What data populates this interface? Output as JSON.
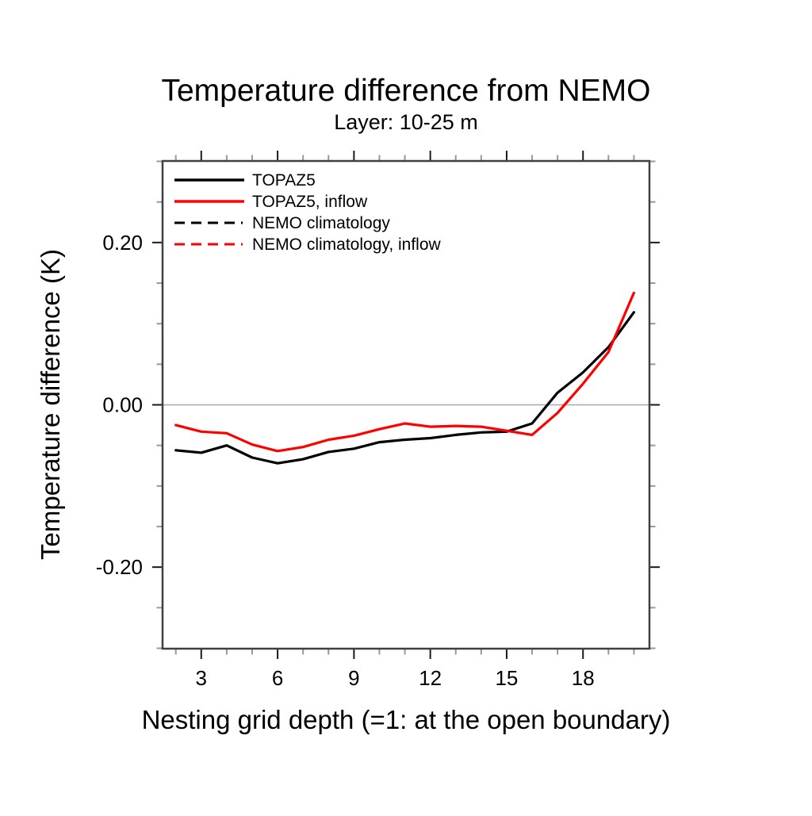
{
  "chart_data": {
    "type": "line",
    "title": "Temperature difference from NEMO",
    "subtitle": "Layer: 10-25 m",
    "xlabel": "Nesting grid depth (=1: at the open boundary)",
    "ylabel": "Temperature difference (K)",
    "x": [
      2,
      3,
      4,
      5,
      6,
      7,
      8,
      9,
      10,
      11,
      12,
      13,
      14,
      15,
      16,
      17,
      18,
      19,
      20
    ],
    "series": [
      {
        "name": "TOPAZ5",
        "color": "#000000",
        "line_style": "solid",
        "visible_in_plot": true,
        "values": [
          -0.056,
          -0.059,
          -0.05,
          -0.065,
          -0.072,
          -0.067,
          -0.058,
          -0.054,
          -0.046,
          -0.043,
          -0.041,
          -0.037,
          -0.034,
          -0.033,
          -0.023,
          0.015,
          0.04,
          0.071,
          0.114
        ]
      },
      {
        "name": "TOPAZ5, inflow",
        "color": "#ff0000",
        "line_style": "solid",
        "visible_in_plot": true,
        "values": [
          -0.025,
          -0.033,
          -0.035,
          -0.049,
          -0.057,
          -0.052,
          -0.043,
          -0.038,
          -0.03,
          -0.023,
          -0.027,
          -0.026,
          -0.027,
          -0.032,
          -0.037,
          -0.01,
          0.026,
          0.065,
          0.138
        ]
      },
      {
        "name": "NEMO climatology",
        "color": "#000000",
        "line_style": "dashed",
        "visible_in_plot": false,
        "values": null
      },
      {
        "name": "NEMO climatology, inflow",
        "color": "#ff0000",
        "line_style": "dashed",
        "visible_in_plot": false,
        "values": null
      }
    ],
    "x_range": [
      1.48,
      20.61
    ],
    "y_range": [
      -0.3005,
      0.3005
    ],
    "x_ticks_major": [
      3,
      6,
      9,
      12,
      15,
      18
    ],
    "x_tick_labels": [
      "3",
      "6",
      "9",
      "12",
      "15",
      "18"
    ],
    "x_minor_step": 1,
    "x_minor_range": [
      2,
      20
    ],
    "y_ticks_major": [
      -0.2,
      0.0,
      0.2
    ],
    "y_tick_labels": [
      "-0.20",
      "0.00",
      "0.20"
    ],
    "y_minor_step": 0.05,
    "grid": false,
    "reference_line_y": 0.0,
    "legend_position": "inside-top-left",
    "colors": {
      "background": "#ffffff",
      "frame": "#404040",
      "tick_major": "#1a1a1a",
      "tick_minor": "#999999",
      "reference_line": "#b3b3b3"
    }
  }
}
